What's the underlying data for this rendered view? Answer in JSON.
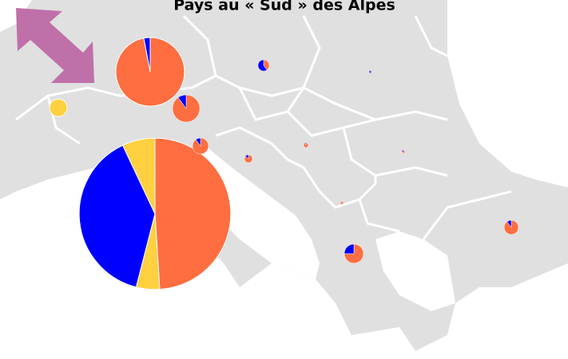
{
  "chart_data": {
    "type": "pie-map",
    "title": "Pays au « Sud » des Alpes",
    "pies": [
      {
        "size": 90,
        "values": [
          49,
          5,
          39,
          7
        ],
        "colors": [
          "#ff6e40",
          "#ffd040",
          "#0000ff",
          "#ffd040"
        ]
      },
      {
        "size": 18.5,
        "values": [
          97,
          3
        ],
        "colors": [
          "#ff6e40",
          "#0000ff"
        ]
      },
      {
        "size": 2.9,
        "values": [
          90,
          10
        ],
        "colors": [
          "#ff6e40",
          "#0000ff"
        ]
      },
      {
        "size": 1,
        "values": [
          90,
          10
        ],
        "colors": [
          "#ff6e40",
          "#0000ff"
        ]
      },
      {
        "size": 1.2,
        "values": [
          100
        ],
        "colors": [
          "#ffd040"
        ]
      },
      {
        "size": 0.5,
        "values": [
          40,
          60
        ],
        "colors": [
          "#ff6e40",
          "#0000ff"
        ]
      },
      {
        "size": 1.44,
        "values": [
          75,
          25
        ],
        "colors": [
          "#ff6e40",
          "#0000ff"
        ]
      },
      {
        "size": 0.8,
        "values": [
          90,
          10
        ],
        "colors": [
          "#ff6e40",
          "#0000ff"
        ]
      },
      {
        "size": 0.25,
        "values": [
          85,
          15
        ],
        "colors": [
          "#ff6e40",
          "#0000ff"
        ]
      },
      {
        "size": 0.09,
        "values": [
          90,
          10
        ],
        "colors": [
          "#ff6e40",
          "#0000ff"
        ]
      },
      {
        "size": 0.04,
        "values": [
          50,
          50
        ],
        "colors": [
          "#ff6e40",
          "#0000ff"
        ]
      },
      {
        "size": 0.04,
        "values": [
          70,
          30
        ],
        "colors": [
          "#ff6e40",
          "#0000ff"
        ]
      },
      {
        "size": 0.04,
        "values": [
          90,
          10
        ],
        "colors": [
          "#ff6e40",
          "#0000ff"
        ]
      }
    ]
  }
}
